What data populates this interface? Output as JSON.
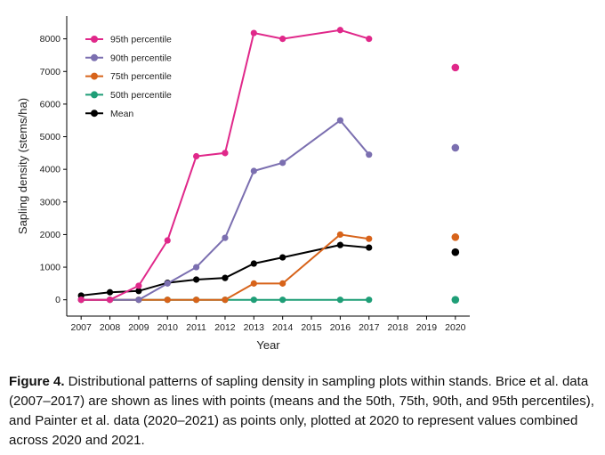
{
  "chart_data": {
    "type": "line",
    "xlabel": "Year",
    "ylabel": "Sapling density (stems/ha)",
    "x_ticks": [
      "2007",
      "2008",
      "2009",
      "2010",
      "2011",
      "2012",
      "2013",
      "2014",
      "2015",
      "2016",
      "2017",
      "2018",
      "2019",
      "2020"
    ],
    "y_ticks": [
      "0",
      "1000",
      "2000",
      "3000",
      "4000",
      "5000",
      "6000",
      "7000",
      "8000"
    ],
    "xlim": [
      2006.5,
      2020.5
    ],
    "ylim": [
      -500,
      8700
    ],
    "legend_position": "top-left",
    "grid": false,
    "series": [
      {
        "name": "95th percentile",
        "color": "#e0288a",
        "x": [
          2007,
          2008,
          2009,
          2010,
          2011,
          2012,
          2013,
          2014,
          2016,
          2017
        ],
        "y": [
          0,
          0,
          430,
          1820,
          4400,
          4500,
          8180,
          8000,
          8270,
          8000
        ],
        "point_2020": 7120
      },
      {
        "name": "90th percentile",
        "color": "#7b6fb0",
        "x": [
          2007,
          2008,
          2009,
          2010,
          2011,
          2012,
          2013,
          2014,
          2016,
          2017
        ],
        "y": [
          0,
          0,
          0,
          500,
          1000,
          1900,
          3950,
          4200,
          5500,
          4450
        ],
        "point_2020": 4660
      },
      {
        "name": "75th percentile",
        "color": "#d7631a",
        "x": [
          2007,
          2008,
          2009,
          2010,
          2011,
          2012,
          2013,
          2014,
          2016,
          2017
        ],
        "y": [
          0,
          0,
          0,
          0,
          0,
          0,
          500,
          500,
          2000,
          1870
        ],
        "point_2020": 1920
      },
      {
        "name": "50th percentile",
        "color": "#1f9e77",
        "x": [
          2007,
          2008,
          2009,
          2010,
          2011,
          2012,
          2013,
          2014,
          2016,
          2017
        ],
        "y": [
          0,
          0,
          0,
          0,
          0,
          0,
          0,
          0,
          0,
          0
        ],
        "point_2020": 0
      },
      {
        "name": "Mean",
        "color": "#000000",
        "x": [
          2007,
          2008,
          2009,
          2010,
          2011,
          2012,
          2013,
          2014,
          2016,
          2017
        ],
        "y": [
          130,
          230,
          270,
          520,
          620,
          670,
          1110,
          1300,
          1680,
          1600
        ],
        "point_2020": 1460
      }
    ]
  },
  "caption": {
    "label": "Figure 4.",
    "text": " Distributional patterns of sapling density in sampling plots within stands. Brice et al. data (2007–2017) are shown as lines with points (means and the 50th, 75th, 90th, and 95th percentiles), and Painter et al. data (2020–2021) as points only, plotted at 2020 to represent values combined across 2020 and 2021."
  }
}
